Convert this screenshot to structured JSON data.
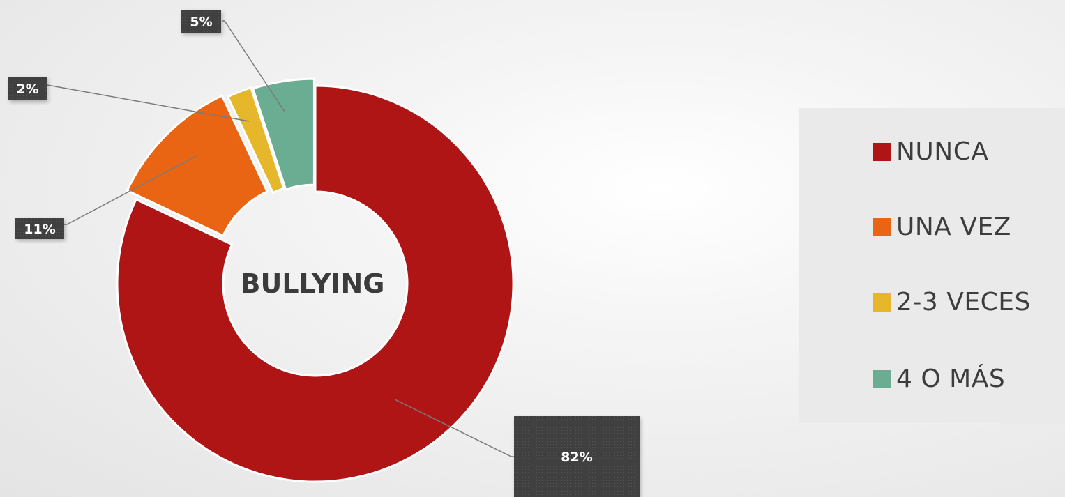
{
  "chart_data": {
    "type": "pie",
    "title": "BULLYING",
    "categories": [
      "NUNCA",
      "UNA VEZ",
      "2-3 VECES",
      "4 O MÁS"
    ],
    "values": [
      82,
      11,
      2,
      5
    ],
    "data_labels": [
      "82%",
      "11%",
      "2%",
      "5%"
    ],
    "colors": [
      "#b01515",
      "#e96513",
      "#e6b72b",
      "#6aad93"
    ],
    "hole": true,
    "legend_position": "right"
  },
  "legend": {
    "items": [
      {
        "label": "NUNCA",
        "color": "#b01515"
      },
      {
        "label": "UNA VEZ",
        "color": "#e96513"
      },
      {
        "label": "2-3 VECES",
        "color": "#e6b72b"
      },
      {
        "label": "4 O MÁS",
        "color": "#6aad93"
      }
    ]
  }
}
